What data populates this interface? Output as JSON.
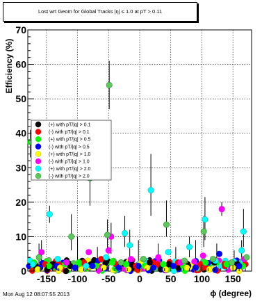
{
  "chart_data": {
    "type": "scatter",
    "title": "Lost wrt Geom for Global Tracks |η| ≤ 1.0 at pT > 0.11",
    "xlabel": "ϕ (degree)",
    "ylabel": "Efficiency (%)",
    "xlim": [
      -180,
      180
    ],
    "ylim": [
      0,
      70
    ],
    "xticks": [
      -150,
      -100,
      -50,
      0,
      50,
      100,
      150
    ],
    "yticks": [
      0,
      10,
      20,
      30,
      40,
      50,
      60,
      70
    ],
    "grid": true,
    "legend_placement": "left",
    "series": [
      {
        "name": "(+) with pT/|q| > 0.1",
        "color": "#000000",
        "marker_outline": "#000000",
        "points": [
          [
            -167,
            1.5
          ],
          [
            -140,
            2.0
          ],
          [
            -112,
            1.5
          ],
          [
            -78,
            2.0
          ],
          [
            -52,
            3.0
          ],
          [
            -26,
            2.2
          ],
          [
            -12,
            1.8
          ],
          [
            16,
            2.5
          ],
          [
            47,
            2.0
          ],
          [
            78,
            1.5
          ],
          [
            120,
            2.5
          ],
          [
            157,
            2.0
          ]
        ]
      },
      {
        "name": "(-) with pT/|q| > 0.1",
        "color": "#ff0000",
        "marker_outline": "#ff0000",
        "points": [
          [
            -152,
            2.0
          ],
          [
            -126,
            1.5
          ],
          [
            -90,
            2.5
          ],
          [
            -62,
            3.5
          ],
          [
            -38,
            2.0
          ],
          [
            -6,
            1.5
          ],
          [
            28,
            2.0
          ],
          [
            62,
            2.5
          ],
          [
            98,
            2.0
          ],
          [
            137,
            1.5
          ],
          [
            170,
            2.0
          ]
        ]
      },
      {
        "name": "(+) with pT/|q| > 0.5",
        "color": "#00ff00",
        "marker_outline": "#00ff00",
        "points": [
          [
            -176,
            37.5
          ],
          [
            -170,
            2.5
          ],
          [
            -146,
            1.5
          ],
          [
            -120,
            2.0
          ],
          [
            -98,
            2.5
          ],
          [
            -70,
            1.5
          ],
          [
            -44,
            2.5
          ],
          [
            -22,
            2.0
          ],
          [
            8,
            1.5
          ],
          [
            38,
            2.0
          ],
          [
            70,
            1.5
          ],
          [
            106,
            2.5
          ],
          [
            140,
            2.0
          ],
          [
            166,
            1.5
          ]
        ]
      },
      {
        "name": "(-) with pT/|q| > 0.5",
        "color": "#0000ff",
        "marker_outline": "#0000ff",
        "points": [
          [
            -160,
            1.0
          ],
          [
            -134,
            1.5
          ],
          [
            -104,
            1.0
          ],
          [
            -76,
            1.5
          ],
          [
            -34,
            1.0
          ],
          [
            -2,
            1.5
          ],
          [
            22,
            1.0
          ],
          [
            54,
            1.5
          ],
          [
            90,
            1.0
          ],
          [
            128,
            5.0
          ],
          [
            160,
            1.5
          ]
        ]
      },
      {
        "name": "(+) with pT/|q| > 1.0",
        "color": "#ffff00",
        "marker_outline": "#bbbb00",
        "points": [
          [
            -164,
            0.5
          ],
          [
            -128,
            1.0
          ],
          [
            -94,
            0.5
          ],
          [
            -58,
            1.0
          ],
          [
            -18,
            0.5
          ],
          [
            12,
            1.0
          ],
          [
            42,
            0.5
          ],
          [
            76,
            1.0
          ],
          [
            112,
            0.5
          ],
          [
            150,
            1.0
          ]
        ]
      },
      {
        "name": "(-) with pT/|q| > 1.0",
        "color": "#ff00ff",
        "marker_outline": "#ff00ff",
        "points": [
          [
            -158,
            5.5
          ],
          [
            -118,
            2.5
          ],
          [
            -82,
            5.5
          ],
          [
            -50,
            6.0
          ],
          [
            -46,
            10.0
          ],
          [
            -14,
            3.5
          ],
          [
            30,
            4.0
          ],
          [
            66,
            2.5
          ],
          [
            102,
            4.5
          ],
          [
            132,
            18.0
          ],
          [
            168,
            3.5
          ]
        ]
      },
      {
        "name": "(+) with pT/|q| > 2.0",
        "color": "#00ffff",
        "marker_outline": "#00bbbb",
        "points": [
          [
            -172,
            2.0
          ],
          [
            -145,
            16.5
          ],
          [
            -132,
            3.5
          ],
          [
            -86,
            1.5
          ],
          [
            -54,
            4.0
          ],
          [
            -24,
            11.0
          ],
          [
            -16,
            7.5
          ],
          [
            18,
            23.5
          ],
          [
            46,
            5.5
          ],
          [
            80,
            7.0
          ],
          [
            105,
            15.0
          ],
          [
            122,
            3.0
          ],
          [
            164,
            6.0
          ],
          [
            167,
            11.5
          ]
        ]
      },
      {
        "name": "(-) with pT/|q| > 2.0",
        "color": "#5ac85a",
        "marker_outline": "#2c8a2c",
        "points": [
          [
            -174,
            37.5
          ],
          [
            -162,
            4.0
          ],
          [
            -110,
            10.0
          ],
          [
            -80,
            27.0
          ],
          [
            -52,
            10.5
          ],
          [
            -49,
            54.0
          ],
          [
            -30,
            2.5
          ],
          [
            6,
            3.5
          ],
          [
            43,
            13.5
          ],
          [
            72,
            3.0
          ],
          [
            103,
            11.5
          ],
          [
            118,
            3.5
          ],
          [
            148,
            2.5
          ],
          [
            172,
            4.0
          ]
        ]
      }
    ],
    "error_bars": [
      [
        -176,
        33,
        41
      ],
      [
        -174,
        34,
        41
      ],
      [
        -145,
        14,
        19
      ],
      [
        -110,
        6,
        16.5
      ],
      [
        -80,
        19,
        32
      ],
      [
        -52,
        6,
        15
      ],
      [
        -49,
        47,
        61
      ],
      [
        -24,
        7,
        16
      ],
      [
        -16,
        4,
        12
      ],
      [
        18,
        16,
        34
      ],
      [
        43,
        10,
        20.5
      ],
      [
        80,
        4,
        10
      ],
      [
        103,
        7,
        16
      ],
      [
        105,
        9,
        21.5
      ],
      [
        132,
        16,
        20
      ],
      [
        164,
        3,
        9
      ],
      [
        167,
        7,
        18
      ],
      [
        -158,
        2,
        9
      ],
      [
        -46,
        5,
        14
      ],
      [
        -162,
        1,
        8
      ],
      [
        -100,
        2,
        10
      ],
      [
        -68,
        1,
        7
      ],
      [
        -2,
        1,
        9
      ],
      [
        30,
        1,
        8
      ],
      [
        58,
        1,
        7
      ],
      [
        90,
        1,
        9
      ],
      [
        124,
        1,
        8
      ],
      [
        152,
        1,
        6
      ]
    ]
  },
  "footer": {
    "timestamp": "Mon Aug 12 08:07:55 2013"
  }
}
